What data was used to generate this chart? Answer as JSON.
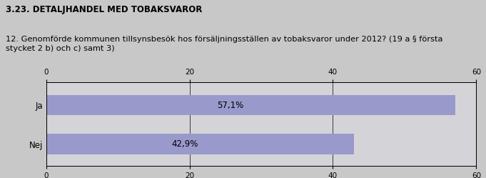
{
  "title1": "3.23. DETALJHANDEL MED TOBAKSVAROR",
  "title2": "12. Genomförde kommunen tillsynsbesök hos försäljningsställen av tobaksvaror under 2012? (19 a § första\nstycket 2 b) och c) samt 3)",
  "categories": [
    "Ja",
    "Nej"
  ],
  "values": [
    57.1,
    42.9
  ],
  "labels": [
    "57,1%",
    "42,9%"
  ],
  "bar_color": "#9999cc",
  "background_color": "#c8c8c8",
  "plot_bg_color": "#d4d4d8",
  "xlim": [
    0,
    60
  ],
  "xticks": [
    0,
    20,
    40,
    60
  ],
  "title1_fontsize": 8.5,
  "title2_fontsize": 8.2,
  "tick_fontsize": 7.5,
  "label_fontsize": 8.5,
  "category_fontsize": 8.5
}
